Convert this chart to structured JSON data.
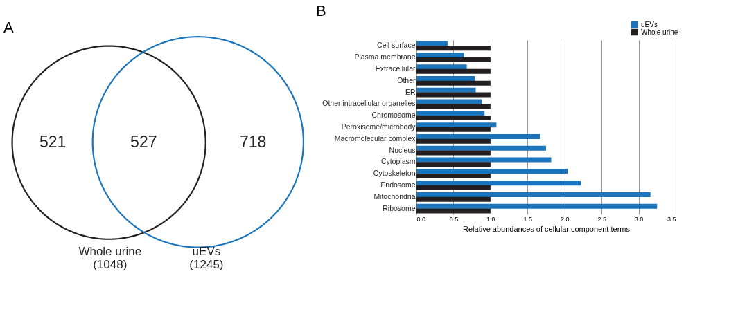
{
  "chart_data": [
    {
      "type": "other",
      "title": "A",
      "categories": [
        "Whole urine",
        "uEVs"
      ],
      "values": [
        1048,
        1245
      ],
      "value_labels": [
        "(1048)",
        "(1245)"
      ],
      "colors": [
        "#231f20",
        "#1a75bc"
      ],
      "annotations": [
        "521",
        "527",
        "718"
      ]
    },
    {
      "type": "bar",
      "orientation": "horizontal",
      "title": "B",
      "xlabel": "Relative abundances of cellular component terms",
      "categories": [
        "Cell surface",
        "Plasma membrane",
        "Extracellular",
        "Other",
        "ER",
        "Other intracellular organelles",
        "Chromosome",
        "Peroxisome/microbody",
        "Macromolecular complex",
        "Nucleus",
        "Cytoplasm",
        "Cytoskeleton",
        "Endosome",
        "Mitochondria",
        "Ribosome"
      ],
      "series": [
        {
          "name": "uEVs",
          "color": "#1a75bc",
          "values": [
            0.42,
            0.64,
            0.68,
            0.79,
            0.8,
            0.88,
            0.92,
            1.08,
            1.67,
            1.75,
            1.82,
            2.04,
            2.22,
            3.16,
            3.25
          ]
        },
        {
          "name": "Whole urine",
          "color": "#231f20",
          "values": [
            1.0,
            1.0,
            1.0,
            1.0,
            1.0,
            1.0,
            1.0,
            1.0,
            1.0,
            1.0,
            1.0,
            1.0,
            1.0,
            1.0,
            1.0
          ]
        }
      ],
      "xlim": [
        0,
        3.5
      ],
      "xticks": [
        {
          "value": 0,
          "label": "0.0"
        },
        {
          "value": 0.5,
          "label": "0.5"
        },
        {
          "value": 1,
          "label": "1.0"
        },
        {
          "value": 1.5,
          "label": "1.5"
        },
        {
          "value": 2,
          "label": "2.0"
        },
        {
          "value": 2.5,
          "label": "2.5"
        },
        {
          "value": 3,
          "label": "3.0"
        },
        {
          "value": 3.5,
          "label": "3.5"
        }
      ],
      "grid": "x",
      "legend": "top right"
    }
  ]
}
